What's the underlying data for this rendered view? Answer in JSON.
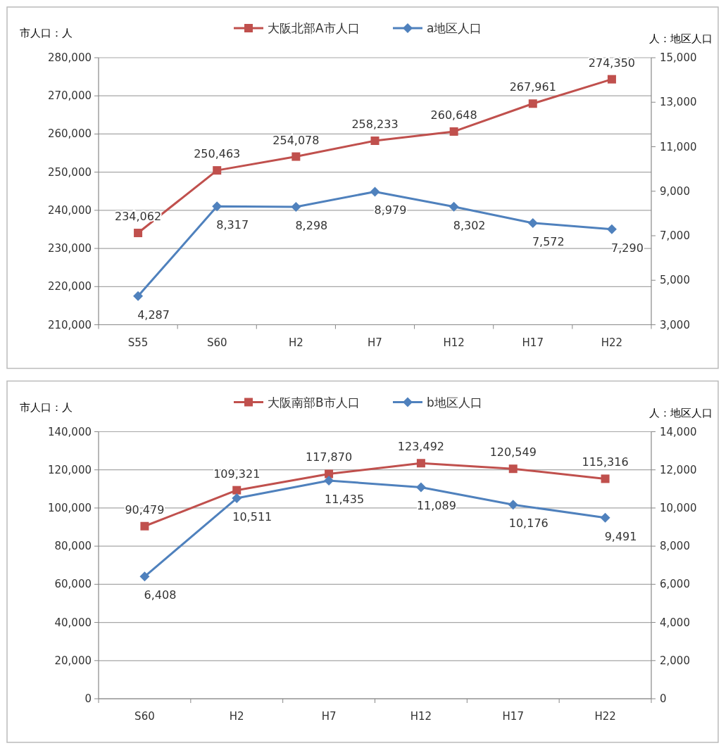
{
  "chart_data": [
    {
      "type": "line",
      "ylabel": "市人口：人",
      "y2label": "人：地区人口",
      "categories": [
        "S55",
        "S60",
        "H2",
        "H7",
        "H12",
        "H17",
        "H22"
      ],
      "series": [
        {
          "name": "大阪北部A市人口",
          "color": "#c0504d",
          "marker": "square",
          "values": [
            234062,
            250463,
            254078,
            258233,
            260648,
            267961,
            274350
          ],
          "value_labels": [
            "234,062",
            "250,463",
            "254,078",
            "258,233",
            "260,648",
            "267,961",
            "274,350"
          ]
        },
        {
          "name": "a地区人口",
          "color": "#4f81bd",
          "marker": "diamond",
          "axis": "y2",
          "values": [
            4287,
            8317,
            8298,
            8979,
            8302,
            7572,
            7290
          ],
          "value_labels": [
            "4,287",
            "8,317",
            "8,298",
            "8,979",
            "8,302",
            "7,572",
            "7,290"
          ]
        }
      ],
      "ylim": [
        210000,
        280000
      ],
      "yticks": [
        {
          "value": 210000,
          "label": "210,000"
        },
        {
          "value": 220000,
          "label": "220,000"
        },
        {
          "value": 230000,
          "label": "230,000"
        },
        {
          "value": 240000,
          "label": "240,000"
        },
        {
          "value": 250000,
          "label": "250,000"
        },
        {
          "value": 260000,
          "label": "260,000"
        },
        {
          "value": 270000,
          "label": "270,000"
        },
        {
          "value": 280000,
          "label": "280,000"
        }
      ],
      "y2lim": [
        3000,
        15000
      ],
      "y2ticks": [
        {
          "value": 3000,
          "label": "3,000"
        },
        {
          "value": 5000,
          "label": "5,000"
        },
        {
          "value": 7000,
          "label": "7,000"
        },
        {
          "value": 9000,
          "label": "9,000"
        },
        {
          "value": 11000,
          "label": "11,000"
        },
        {
          "value": 13000,
          "label": "13,000"
        },
        {
          "value": 15000,
          "label": "15,000"
        }
      ],
      "grid": "y",
      "legend": "top"
    },
    {
      "type": "line",
      "ylabel": "市人口：人",
      "y2label": "人：地区人口",
      "categories": [
        "S60",
        "H2",
        "H7",
        "H12",
        "H17",
        "H22"
      ],
      "series": [
        {
          "name": "大阪南部B市人口",
          "color": "#c0504d",
          "marker": "square",
          "values": [
            90479,
            109321,
            117870,
            123492,
            120549,
            115316
          ],
          "value_labels": [
            "90,479",
            "109,321",
            "117,870",
            "123,492",
            "120,549",
            "115,316"
          ]
        },
        {
          "name": "b地区人口",
          "color": "#4f81bd",
          "marker": "diamond",
          "axis": "y2",
          "values": [
            6408,
            10511,
            11435,
            11089,
            10176,
            9491
          ],
          "value_labels": [
            "6,408",
            "10,511",
            "11,435",
            "11,089",
            "10,176",
            "9,491"
          ]
        }
      ],
      "ylim": [
        0,
        140000
      ],
      "yticks": [
        0,
        {
          "value": 20000,
          "label": "20,000"
        },
        {
          "value": 40000,
          "label": "40,000"
        },
        {
          "value": 60000,
          "label": "60,000"
        },
        {
          "value": 80000,
          "label": "80,000"
        },
        {
          "value": 100000,
          "label": "100,000"
        },
        {
          "value": 120000,
          "label": "120,000"
        },
        {
          "value": 140000,
          "label": "140,000"
        }
      ],
      "y2lim": [
        0,
        14000
      ],
      "y2ticks": [
        0,
        {
          "value": 2000,
          "label": "2,000"
        },
        {
          "value": 4000,
          "label": "4,000"
        },
        {
          "value": 6000,
          "label": "6,000"
        },
        {
          "value": 8000,
          "label": "8,000"
        },
        {
          "value": 10000,
          "label": "10,000"
        },
        {
          "value": 12000,
          "label": "12,000"
        },
        {
          "value": 14000,
          "label": "14,000"
        }
      ],
      "grid": "y",
      "legend": "top"
    }
  ]
}
